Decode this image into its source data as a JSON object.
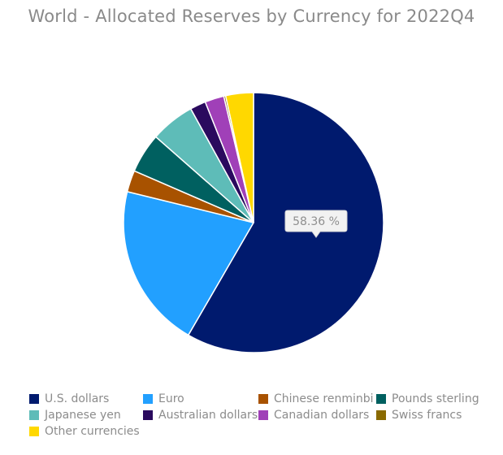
{
  "chart_data": {
    "type": "pie",
    "title": "World - Allocated Reserves by Currency for 2022Q4",
    "categories": [
      "U.S. dollars",
      "Euro",
      "Chinese renminbi",
      "Pounds sterling",
      "Japanese yen",
      "Australian dollars",
      "Canadian dollars",
      "Swiss francs",
      "Other currencies"
    ],
    "values": [
      58.36,
      20.47,
      2.69,
      4.95,
      5.51,
      1.96,
      2.38,
      0.23,
      3.45
    ],
    "colors": [
      "#001a6e",
      "#22a0ff",
      "#a85200",
      "#006060",
      "#5ebcb8",
      "#2a0a5e",
      "#a040b8",
      "#8a6a00",
      "#ffd800"
    ],
    "tooltip": "58.36 %",
    "legend_placement": "bottom"
  }
}
